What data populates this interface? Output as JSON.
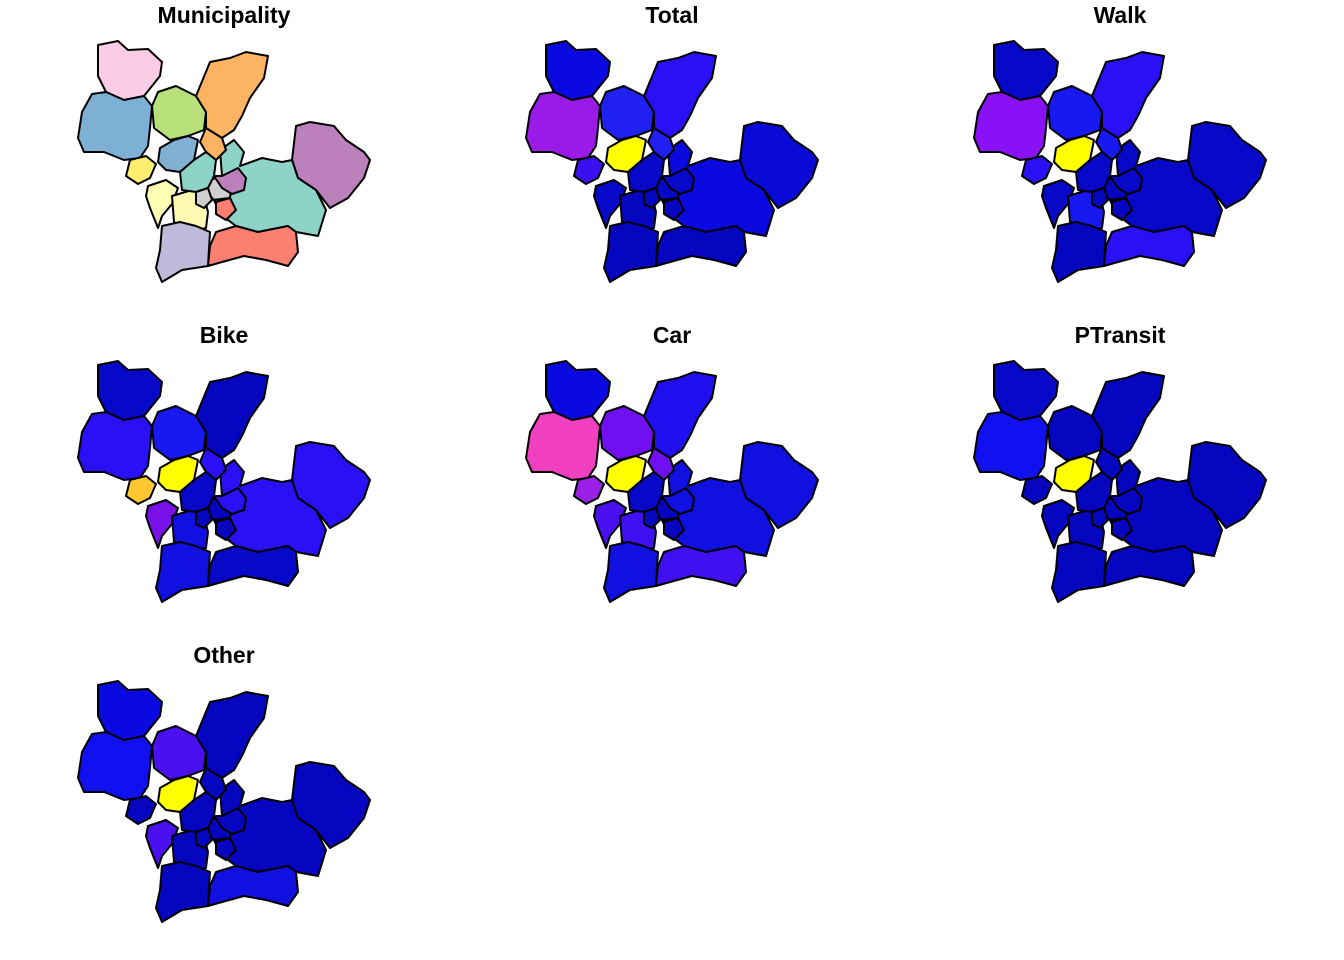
{
  "figure": {
    "panels": [
      {
        "title": "Municipality",
        "fills": [
          "#fbcce5",
          "#7eb0d5",
          "#b8e07a",
          "#fdb462",
          "#80b1d3",
          "#ffed6f",
          "#ffffb3",
          "#fffab3",
          "#cfcfcf",
          "#bc80bd",
          "#8dd3c7",
          "#fb8072",
          "#bebada",
          "#fdb462",
          "#8dd3c7",
          "#bc80bd",
          "#cfcfcf",
          "#fb8072"
        ]
      },
      {
        "title": "Total",
        "fills": [
          "#0a0ae0",
          "#9a1ae8",
          "#2020f0",
          "#2a10f5",
          "#ffff00",
          "#3a10f0",
          "#0808c8",
          "#0606c0",
          "#0808c8",
          "#0a0ad8",
          "#0a0ae0",
          "#0606c0",
          "#0606c0",
          "#2020f0",
          "#0808c8",
          "#0808c8",
          "#0606c0",
          "#0606c0"
        ]
      },
      {
        "title": "Walk",
        "fills": [
          "#0808c8",
          "#8a10f5",
          "#1818f0",
          "#2a10f5",
          "#ffff00",
          "#2a10f5",
          "#0808c8",
          "#1818f0",
          "#0606c0",
          "#0808c8",
          "#0808c8",
          "#2a10f5",
          "#0606c0",
          "#1818f0",
          "#0808c8",
          "#0808c8",
          "#0606c0",
          "#0606c0"
        ]
      },
      {
        "title": "Bike",
        "fills": [
          "#0808c8",
          "#2a10f5",
          "#1818f0",
          "#0606c0",
          "#ffff00",
          "#ffc830",
          "#7a10e8",
          "#1010e0",
          "#0606c0",
          "#2a10f5",
          "#2a10f5",
          "#0808c8",
          "#1010e0",
          "#2a10f5",
          "#0808c8",
          "#2a10f5",
          "#0606c0",
          "#0606c0"
        ]
      },
      {
        "title": "Car",
        "fills": [
          "#0a0ae0",
          "#f040c0",
          "#7010f0",
          "#2010f0",
          "#ffff00",
          "#9a20e8",
          "#4a10f0",
          "#4010f0",
          "#0606c0",
          "#1010e0",
          "#1010e0",
          "#4010f0",
          "#1010e0",
          "#7010f0",
          "#0808c8",
          "#1010e0",
          "#0606c0",
          "#0606c0"
        ]
      },
      {
        "title": "PTransit",
        "fills": [
          "#0808c8",
          "#1010f0",
          "#0606c0",
          "#0606c0",
          "#ffff00",
          "#0606c0",
          "#0606c0",
          "#0606c0",
          "#0606c0",
          "#0606c0",
          "#0606c0",
          "#0606c0",
          "#0606c0",
          "#0606c0",
          "#0606c0",
          "#0606c0",
          "#0606c0",
          "#0606c0"
        ]
      },
      {
        "title": "Other",
        "fills": [
          "#0a0ae0",
          "#1010f0",
          "#4a10f0",
          "#0606c0",
          "#ffff00",
          "#0606c0",
          "#4a10f0",
          "#0606c0",
          "#0606c0",
          "#0606c0",
          "#0606c0",
          "#1010e0",
          "#0606c0",
          "#0606c0",
          "#0606c0",
          "#0606c0",
          "#0606c0",
          "#0606c0"
        ]
      }
    ]
  }
}
